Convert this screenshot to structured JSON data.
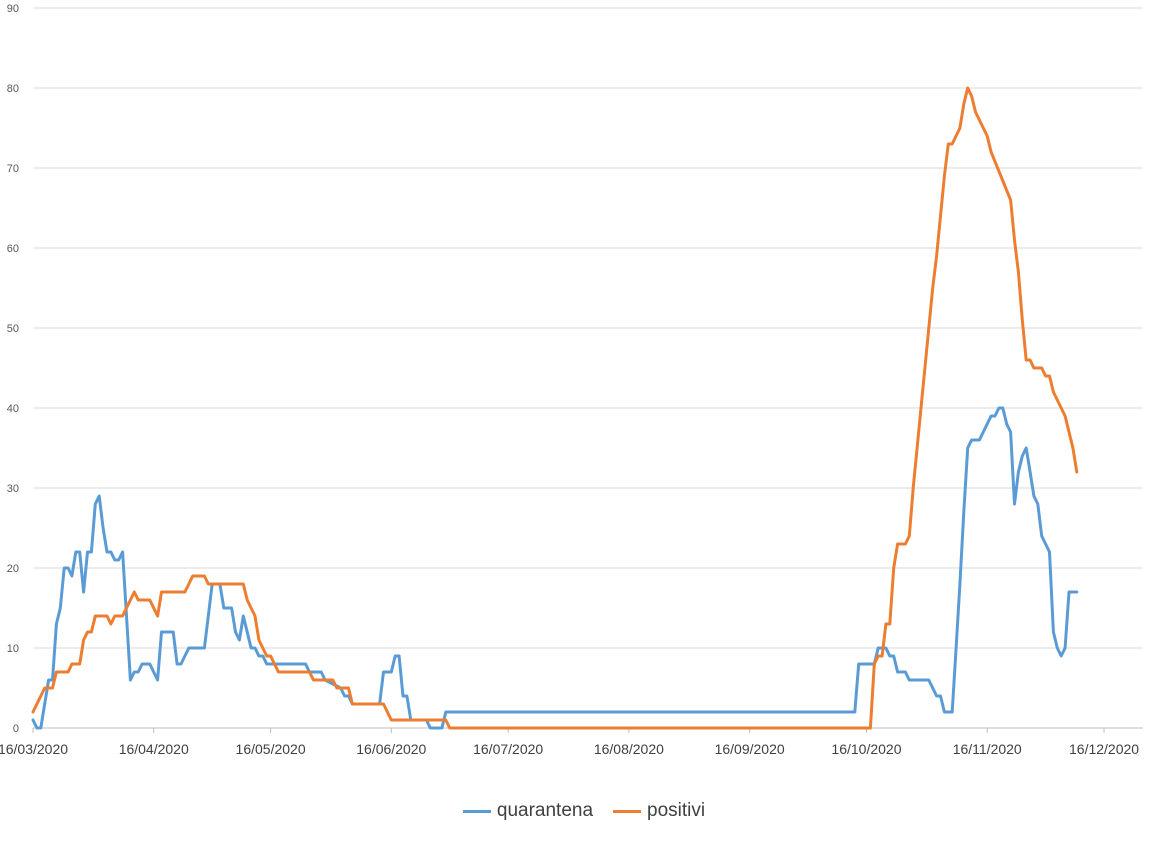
{
  "chart_data": {
    "type": "line",
    "title": "",
    "xlabel": "",
    "ylabel": "",
    "ylim": [
      0,
      90
    ],
    "yticks": [
      0,
      10,
      20,
      30,
      40,
      50,
      60,
      70,
      80,
      90
    ],
    "xlim": [
      "2020-03-16",
      "2020-12-26"
    ],
    "xticks": [
      {
        "date": "2020-03-16",
        "label": "16/03/2020"
      },
      {
        "date": "2020-04-16",
        "label": "16/04/2020"
      },
      {
        "date": "2020-05-16",
        "label": "16/05/2020"
      },
      {
        "date": "2020-06-16",
        "label": "16/06/2020"
      },
      {
        "date": "2020-07-16",
        "label": "16/07/2020"
      },
      {
        "date": "2020-08-16",
        "label": "16/08/2020"
      },
      {
        "date": "2020-09-16",
        "label": "16/09/2020"
      },
      {
        "date": "2020-10-16",
        "label": "16/10/2020"
      },
      {
        "date": "2020-11-16",
        "label": "16/11/2020"
      },
      {
        "date": "2020-12-16",
        "label": "16/12/2020"
      }
    ],
    "grid": true,
    "legend_position": "bottom",
    "series": [
      {
        "name": "quarantena",
        "color": "#5b9bd5",
        "points": [
          [
            "2020-03-16",
            1
          ],
          [
            "2020-03-17",
            0
          ],
          [
            "2020-03-18",
            0
          ],
          [
            "2020-03-19",
            3
          ],
          [
            "2020-03-20",
            6
          ],
          [
            "2020-03-21",
            6
          ],
          [
            "2020-03-22",
            13
          ],
          [
            "2020-03-23",
            15
          ],
          [
            "2020-03-24",
            20
          ],
          [
            "2020-03-25",
            20
          ],
          [
            "2020-03-26",
            19
          ],
          [
            "2020-03-27",
            22
          ],
          [
            "2020-03-28",
            22
          ],
          [
            "2020-03-29",
            17
          ],
          [
            "2020-03-30",
            22
          ],
          [
            "2020-03-31",
            22
          ],
          [
            "2020-04-01",
            28
          ],
          [
            "2020-04-02",
            29
          ],
          [
            "2020-04-03",
            25
          ],
          [
            "2020-04-04",
            22
          ],
          [
            "2020-04-05",
            22
          ],
          [
            "2020-04-06",
            21
          ],
          [
            "2020-04-07",
            21
          ],
          [
            "2020-04-08",
            22
          ],
          [
            "2020-04-09",
            14
          ],
          [
            "2020-04-10",
            6
          ],
          [
            "2020-04-11",
            7
          ],
          [
            "2020-04-12",
            7
          ],
          [
            "2020-04-13",
            8
          ],
          [
            "2020-04-14",
            8
          ],
          [
            "2020-04-15",
            8
          ],
          [
            "2020-04-16",
            7
          ],
          [
            "2020-04-17",
            6
          ],
          [
            "2020-04-18",
            12
          ],
          [
            "2020-04-19",
            12
          ],
          [
            "2020-04-20",
            12
          ],
          [
            "2020-04-21",
            12
          ],
          [
            "2020-04-22",
            8
          ],
          [
            "2020-04-23",
            8
          ],
          [
            "2020-04-24",
            9
          ],
          [
            "2020-04-25",
            10
          ],
          [
            "2020-04-26",
            10
          ],
          [
            "2020-04-27",
            10
          ],
          [
            "2020-04-28",
            10
          ],
          [
            "2020-04-29",
            10
          ],
          [
            "2020-04-30",
            14
          ],
          [
            "2020-05-01",
            18
          ],
          [
            "2020-05-02",
            18
          ],
          [
            "2020-05-03",
            18
          ],
          [
            "2020-05-04",
            15
          ],
          [
            "2020-05-05",
            15
          ],
          [
            "2020-05-06",
            15
          ],
          [
            "2020-05-07",
            12
          ],
          [
            "2020-05-08",
            11
          ],
          [
            "2020-05-09",
            14
          ],
          [
            "2020-05-10",
            12
          ],
          [
            "2020-05-11",
            10
          ],
          [
            "2020-05-12",
            10
          ],
          [
            "2020-05-13",
            9
          ],
          [
            "2020-05-14",
            9
          ],
          [
            "2020-05-15",
            8
          ],
          [
            "2020-05-18",
            8
          ],
          [
            "2020-05-25",
            8
          ],
          [
            "2020-05-26",
            7
          ],
          [
            "2020-05-29",
            7
          ],
          [
            "2020-05-30",
            6
          ],
          [
            "2020-06-03",
            5
          ],
          [
            "2020-06-04",
            4
          ],
          [
            "2020-06-05",
            4
          ],
          [
            "2020-06-06",
            3
          ],
          [
            "2020-06-13",
            3
          ],
          [
            "2020-06-14",
            7
          ],
          [
            "2020-06-16",
            7
          ],
          [
            "2020-06-17",
            9
          ],
          [
            "2020-06-18",
            9
          ],
          [
            "2020-06-19",
            4
          ],
          [
            "2020-06-20",
            4
          ],
          [
            "2020-06-21",
            1
          ],
          [
            "2020-06-24",
            1
          ],
          [
            "2020-06-25",
            1
          ],
          [
            "2020-06-26",
            0
          ],
          [
            "2020-06-29",
            0
          ],
          [
            "2020-06-30",
            2
          ],
          [
            "2020-10-13",
            2
          ],
          [
            "2020-10-14",
            8
          ],
          [
            "2020-10-18",
            8
          ],
          [
            "2020-10-19",
            10
          ],
          [
            "2020-10-21",
            10
          ],
          [
            "2020-10-22",
            9
          ],
          [
            "2020-10-23",
            9
          ],
          [
            "2020-10-24",
            7
          ],
          [
            "2020-10-26",
            7
          ],
          [
            "2020-10-27",
            6
          ],
          [
            "2020-11-01",
            6
          ],
          [
            "2020-11-02",
            5
          ],
          [
            "2020-11-03",
            4
          ],
          [
            "2020-11-04",
            4
          ],
          [
            "2020-11-05",
            2
          ],
          [
            "2020-11-07",
            2
          ],
          [
            "2020-11-08",
            10
          ],
          [
            "2020-11-09",
            18
          ],
          [
            "2020-11-10",
            27
          ],
          [
            "2020-11-11",
            35
          ],
          [
            "2020-11-12",
            36
          ],
          [
            "2020-11-13",
            36
          ],
          [
            "2020-11-14",
            36
          ],
          [
            "2020-11-15",
            37
          ],
          [
            "2020-11-16",
            38
          ],
          [
            "2020-11-17",
            39
          ],
          [
            "2020-11-18",
            39
          ],
          [
            "2020-11-19",
            40
          ],
          [
            "2020-11-20",
            40
          ],
          [
            "2020-11-21",
            38
          ],
          [
            "2020-11-22",
            37
          ],
          [
            "2020-11-23",
            28
          ],
          [
            "2020-11-24",
            32
          ],
          [
            "2020-11-25",
            34
          ],
          [
            "2020-11-26",
            35
          ],
          [
            "2020-11-27",
            32
          ],
          [
            "2020-11-28",
            29
          ],
          [
            "2020-11-29",
            28
          ],
          [
            "2020-11-30",
            24
          ],
          [
            "2020-12-01",
            23
          ],
          [
            "2020-12-02",
            22
          ],
          [
            "2020-12-03",
            12
          ],
          [
            "2020-12-04",
            10
          ],
          [
            "2020-12-05",
            9
          ],
          [
            "2020-12-06",
            10
          ],
          [
            "2020-12-07",
            17
          ],
          [
            "2020-12-09",
            17
          ]
        ]
      },
      {
        "name": "positivi",
        "color": "#ed7d31",
        "points": [
          [
            "2020-03-16",
            2
          ],
          [
            "2020-03-17",
            3
          ],
          [
            "2020-03-18",
            4
          ],
          [
            "2020-03-19",
            5
          ],
          [
            "2020-03-20",
            5
          ],
          [
            "2020-03-21",
            5
          ],
          [
            "2020-03-22",
            7
          ],
          [
            "2020-03-25",
            7
          ],
          [
            "2020-03-26",
            8
          ],
          [
            "2020-03-28",
            8
          ],
          [
            "2020-03-29",
            11
          ],
          [
            "2020-03-30",
            12
          ],
          [
            "2020-03-31",
            12
          ],
          [
            "2020-04-01",
            14
          ],
          [
            "2020-04-04",
            14
          ],
          [
            "2020-04-05",
            13
          ],
          [
            "2020-04-06",
            14
          ],
          [
            "2020-04-08",
            14
          ],
          [
            "2020-04-09",
            15
          ],
          [
            "2020-04-10",
            16
          ],
          [
            "2020-04-11",
            17
          ],
          [
            "2020-04-12",
            16
          ],
          [
            "2020-04-15",
            16
          ],
          [
            "2020-04-16",
            15
          ],
          [
            "2020-04-17",
            14
          ],
          [
            "2020-04-18",
            17
          ],
          [
            "2020-04-24",
            17
          ],
          [
            "2020-04-25",
            18
          ],
          [
            "2020-04-26",
            19
          ],
          [
            "2020-04-29",
            19
          ],
          [
            "2020-04-30",
            18
          ],
          [
            "2020-05-09",
            18
          ],
          [
            "2020-05-10",
            16
          ],
          [
            "2020-05-11",
            15
          ],
          [
            "2020-05-12",
            14
          ],
          [
            "2020-05-13",
            11
          ],
          [
            "2020-05-14",
            10
          ],
          [
            "2020-05-15",
            9
          ],
          [
            "2020-05-16",
            9
          ],
          [
            "2020-05-17",
            8
          ],
          [
            "2020-05-18",
            7
          ],
          [
            "2020-05-26",
            7
          ],
          [
            "2020-05-27",
            6
          ],
          [
            "2020-06-01",
            6
          ],
          [
            "2020-06-02",
            5
          ],
          [
            "2020-06-05",
            5
          ],
          [
            "2020-06-06",
            3
          ],
          [
            "2020-06-14",
            3
          ],
          [
            "2020-06-15",
            2
          ],
          [
            "2020-06-16",
            1
          ],
          [
            "2020-06-30",
            1
          ],
          [
            "2020-07-01",
            0
          ],
          [
            "2020-10-17",
            0
          ],
          [
            "2020-10-18",
            8
          ],
          [
            "2020-10-19",
            9
          ],
          [
            "2020-10-20",
            9
          ],
          [
            "2020-10-21",
            13
          ],
          [
            "2020-10-22",
            13
          ],
          [
            "2020-10-23",
            20
          ],
          [
            "2020-10-24",
            23
          ],
          [
            "2020-10-26",
            23
          ],
          [
            "2020-10-27",
            24
          ],
          [
            "2020-10-28",
            30
          ],
          [
            "2020-10-29",
            35
          ],
          [
            "2020-10-30",
            40
          ],
          [
            "2020-10-31",
            45
          ],
          [
            "2020-11-01",
            50
          ],
          [
            "2020-11-02",
            55
          ],
          [
            "2020-11-03",
            59
          ],
          [
            "2020-11-04",
            64
          ],
          [
            "2020-11-05",
            69
          ],
          [
            "2020-11-06",
            73
          ],
          [
            "2020-11-07",
            73
          ],
          [
            "2020-11-09",
            75
          ],
          [
            "2020-11-10",
            78
          ],
          [
            "2020-11-11",
            80
          ],
          [
            "2020-11-12",
            79
          ],
          [
            "2020-11-13",
            77
          ],
          [
            "2020-11-14",
            76
          ],
          [
            "2020-11-15",
            75
          ],
          [
            "2020-11-16",
            74
          ],
          [
            "2020-11-17",
            72
          ],
          [
            "2020-11-22",
            66
          ],
          [
            "2020-11-23",
            61
          ],
          [
            "2020-11-24",
            57
          ],
          [
            "2020-11-25",
            51
          ],
          [
            "2020-11-26",
            46
          ],
          [
            "2020-11-27",
            46
          ],
          [
            "2020-11-28",
            45
          ],
          [
            "2020-11-30",
            45
          ],
          [
            "2020-12-01",
            44
          ],
          [
            "2020-12-02",
            44
          ],
          [
            "2020-12-03",
            42
          ],
          [
            "2020-12-04",
            41
          ],
          [
            "2020-12-05",
            40
          ],
          [
            "2020-12-06",
            39
          ],
          [
            "2020-12-07",
            37
          ],
          [
            "2020-12-08",
            35
          ],
          [
            "2020-12-09",
            32
          ]
        ]
      }
    ]
  }
}
